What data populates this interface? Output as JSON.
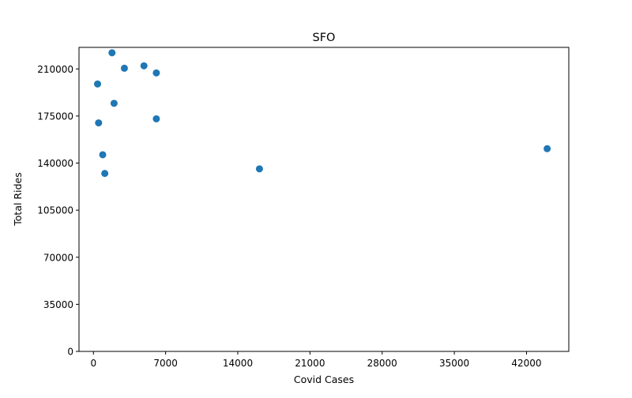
{
  "chart_data": {
    "type": "scatter",
    "title": "SFO",
    "xlabel": "Covid Cases",
    "ylabel": "Total Rides",
    "xlim": [
      -1400,
      46100
    ],
    "ylim": [
      0,
      226000
    ],
    "xticks": [
      0,
      7000,
      14000,
      21000,
      28000,
      35000,
      42000
    ],
    "yticks": [
      0,
      35000,
      70000,
      105000,
      140000,
      175000,
      210000
    ],
    "grid": false,
    "marker_color": "#1f77b4",
    "points": [
      {
        "x": 1800,
        "y": 222000
      },
      {
        "x": 3000,
        "y": 210500
      },
      {
        "x": 4900,
        "y": 212300
      },
      {
        "x": 6100,
        "y": 207000
      },
      {
        "x": 400,
        "y": 198800
      },
      {
        "x": 2000,
        "y": 184400
      },
      {
        "x": 6100,
        "y": 172900
      },
      {
        "x": 500,
        "y": 169900
      },
      {
        "x": 900,
        "y": 146200
      },
      {
        "x": 1100,
        "y": 132300
      },
      {
        "x": 16100,
        "y": 135700
      },
      {
        "x": 44000,
        "y": 150700
      }
    ]
  }
}
